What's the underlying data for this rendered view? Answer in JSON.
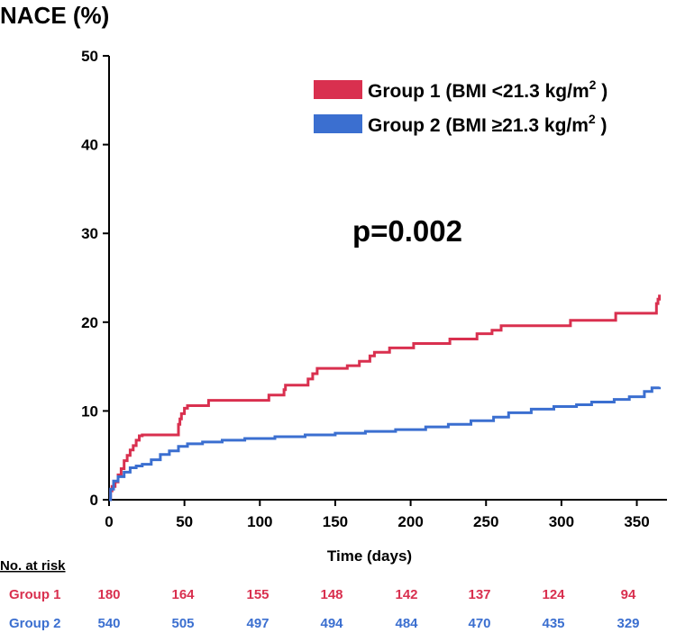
{
  "chart_data": {
    "type": "line",
    "title": "",
    "ylabel": "NACE (%)",
    "xlabel": "Time (days)",
    "xlim": [
      0,
      370
    ],
    "ylim": [
      0,
      50
    ],
    "x_ticks": [
      0,
      50,
      100,
      150,
      200,
      250,
      300,
      350
    ],
    "y_ticks": [
      0,
      10,
      20,
      30,
      40,
      50
    ],
    "legend": [
      {
        "label": "Group 1 (BMI <21.3 kg/m",
        "sup": "2",
        "close": " )",
        "color": "#d9304f"
      },
      {
        "label": "Group 2 (BMI ≥21.3 kg/m",
        "sup": "2",
        "close": " )",
        "color": "#3b6fd0"
      }
    ],
    "annotation": "p=0.002",
    "series": [
      {
        "name": "Group 1",
        "color": "#d9304f",
        "points": [
          [
            0,
            0
          ],
          [
            1,
            1
          ],
          [
            2,
            1.5
          ],
          [
            4,
            2
          ],
          [
            6,
            2.8
          ],
          [
            8,
            3.5
          ],
          [
            10,
            4.4
          ],
          [
            12,
            5
          ],
          [
            14,
            5.6
          ],
          [
            16,
            6.1
          ],
          [
            18,
            6.7
          ],
          [
            20,
            7.2
          ],
          [
            22,
            7.3
          ],
          [
            45,
            7.3
          ],
          [
            46,
            8.5
          ],
          [
            47,
            9.1
          ],
          [
            48,
            9.7
          ],
          [
            50,
            10.3
          ],
          [
            52,
            10.6
          ],
          [
            65,
            10.6
          ],
          [
            66,
            11.2
          ],
          [
            105,
            11.2
          ],
          [
            106,
            11.8
          ],
          [
            115,
            11.8
          ],
          [
            116,
            12.4
          ],
          [
            117,
            12.9
          ],
          [
            130,
            12.9
          ],
          [
            132,
            13.6
          ],
          [
            135,
            14.2
          ],
          [
            138,
            14.8
          ],
          [
            155,
            14.8
          ],
          [
            158,
            15.1
          ],
          [
            165,
            15.1
          ],
          [
            166,
            15.6
          ],
          [
            172,
            15.6
          ],
          [
            173,
            16.2
          ],
          [
            176,
            16.6
          ],
          [
            185,
            16.6
          ],
          [
            186,
            17.1
          ],
          [
            200,
            17.1
          ],
          [
            202,
            17.6
          ],
          [
            225,
            17.6
          ],
          [
            226,
            18.1
          ],
          [
            243,
            18.1
          ],
          [
            244,
            18.7
          ],
          [
            253,
            18.7
          ],
          [
            254,
            19.1
          ],
          [
            258,
            19.1
          ],
          [
            260,
            19.6
          ],
          [
            305,
            19.6
          ],
          [
            306,
            20.2
          ],
          [
            335,
            20.2
          ],
          [
            336,
            21.0
          ],
          [
            362,
            21.0
          ],
          [
            363,
            22.1
          ],
          [
            364,
            22.6
          ],
          [
            365,
            23.1
          ]
        ]
      },
      {
        "name": "Group 2",
        "color": "#3b6fd0",
        "points": [
          [
            0,
            0
          ],
          [
            1,
            1.2
          ],
          [
            3,
            2.1
          ],
          [
            6,
            2.6
          ],
          [
            10,
            3.1
          ],
          [
            14,
            3.6
          ],
          [
            18,
            3.8
          ],
          [
            22,
            4.0
          ],
          [
            28,
            4.5
          ],
          [
            34,
            5.1
          ],
          [
            40,
            5.5
          ],
          [
            46,
            6.0
          ],
          [
            52,
            6.3
          ],
          [
            62,
            6.5
          ],
          [
            75,
            6.7
          ],
          [
            90,
            6.9
          ],
          [
            110,
            7.1
          ],
          [
            130,
            7.3
          ],
          [
            150,
            7.5
          ],
          [
            170,
            7.7
          ],
          [
            190,
            7.9
          ],
          [
            210,
            8.2
          ],
          [
            225,
            8.5
          ],
          [
            240,
            8.9
          ],
          [
            255,
            9.3
          ],
          [
            265,
            9.8
          ],
          [
            280,
            10.2
          ],
          [
            295,
            10.5
          ],
          [
            310,
            10.7
          ],
          [
            320,
            11.0
          ],
          [
            335,
            11.3
          ],
          [
            345,
            11.6
          ],
          [
            355,
            12.2
          ],
          [
            360,
            12.6
          ],
          [
            365,
            12.7
          ]
        ]
      }
    ]
  },
  "risk_table": {
    "title": "No. at risk",
    "rows": [
      {
        "label": "Group 1",
        "color": "#d9304f",
        "values": [
          "180",
          "164",
          "155",
          "148",
          "142",
          "137",
          "124",
          "94"
        ]
      },
      {
        "label": "Group 2",
        "color": "#3b6fd0",
        "values": [
          "540",
          "505",
          "497",
          "494",
          "484",
          "470",
          "435",
          "329"
        ]
      }
    ]
  }
}
